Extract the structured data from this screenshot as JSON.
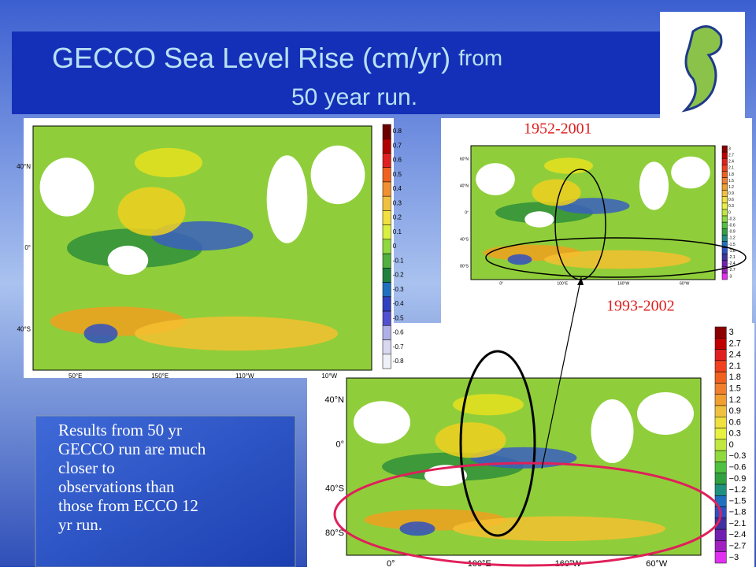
{
  "title": {
    "main": "GECCO Sea Level Rise (cm/yr)",
    "suffix": "from",
    "line2": "50 year run."
  },
  "map_left": {
    "lat_labels": [
      "40°N",
      "0°",
      "40°S"
    ],
    "lon_labels": [
      "50°E",
      "150°E",
      "110°W",
      "10°W"
    ],
    "colorbar": [
      "0.8",
      "0.7",
      "0.6",
      "0.5",
      "0.4",
      "0.3",
      "0.2",
      "0.1",
      "0",
      "-0.1",
      "-0.2",
      "-0.3",
      "-0.4",
      "-0.5",
      "-0.6",
      "-0.7",
      "-0.8"
    ]
  },
  "map_top_right": {
    "period": "1952-2001",
    "lat_labels": [
      "60°N",
      "40°N",
      "0°",
      "40°S",
      "80°S"
    ],
    "lon_labels": [
      "0°",
      "100°E",
      "160°W",
      "60°W"
    ],
    "colorbar": [
      "3",
      "2.7",
      "2.4",
      "2.1",
      "1.8",
      "1.5",
      "1.2",
      "0.9",
      "0.6",
      "0.3",
      "0",
      "-0.3",
      "-0.6",
      "-0.9",
      "-1.2",
      "-1.5",
      "-1.8",
      "-2.1",
      "-2.4",
      "-2.7",
      "-3"
    ]
  },
  "map_bottom_right": {
    "period": "1993-2002",
    "lat_labels": [
      "40°N",
      "0°",
      "40°S",
      "80°S"
    ],
    "lon_labels": [
      "0°",
      "100°E",
      "160°W",
      "60°W"
    ],
    "colorbar": [
      "3",
      "2.7",
      "2.4",
      "2.1",
      "1.8",
      "1.5",
      "1.2",
      "0.9",
      "0.6",
      "0.3",
      "0",
      "−0.3",
      "−0.6",
      "−0.9",
      "−1.2",
      "−1.5",
      "−1.8",
      "−2.1",
      "−2.4",
      "−2.7",
      "−3"
    ]
  },
  "note": "Results from 50 yr GECCO run are much closer to observations than those from ECCO 12 yr run."
}
